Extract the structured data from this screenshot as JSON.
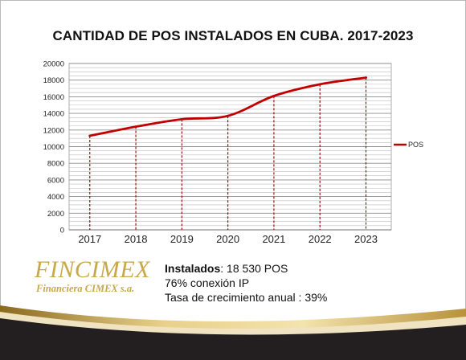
{
  "chart_data": {
    "type": "line",
    "title": "CANTIDAD DE POS INSTALADOS EN CUBA. 2017-2023",
    "categories": [
      "2017",
      "2018",
      "2019",
      "2020",
      "2021",
      "2022",
      "2023"
    ],
    "x": [
      2017.0,
      2018.0,
      2019.0,
      2020.0,
      2021.0,
      2022.0,
      2023.0
    ],
    "series": [
      {
        "name": "POS",
        "values": [
          11300,
          12400,
          13300,
          13700,
          16100,
          17500,
          18300
        ]
      }
    ],
    "ylim": [
      0,
      20000
    ],
    "yticks": [
      "0",
      "2000",
      "4000",
      "6000",
      "8000",
      "10000",
      "12000",
      "14000",
      "16000",
      "18000",
      "20000"
    ],
    "grid": true,
    "legend": "right",
    "colors": {
      "line": "#c00000",
      "grid": "#a6a6a6",
      "drop_lines": "#8b0000"
    }
  },
  "logo": {
    "main": "FINCIMEX",
    "sub": "Financiera CIMEX s.a.",
    "color": "#c8a84a"
  },
  "stats": {
    "installed_label": "Instalados",
    "installed_value": ": 18 530 POS",
    "ip_line": "76% conexión IP",
    "growth_line": "Tasa de crecimiento anual : 39%"
  }
}
